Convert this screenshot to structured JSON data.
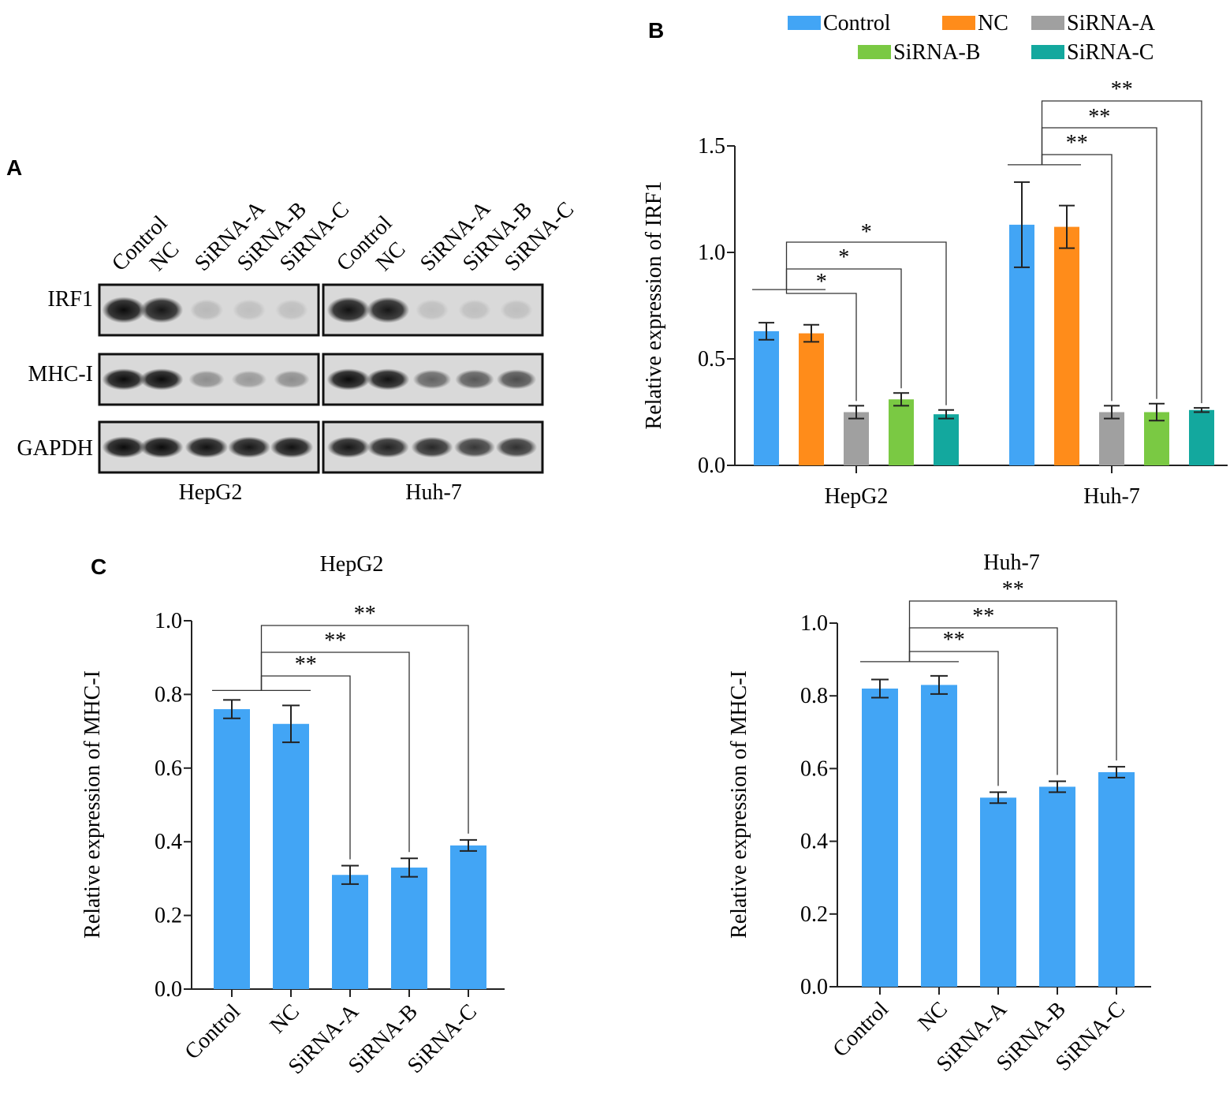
{
  "panel_labels": {
    "a": "A",
    "b": "B",
    "c": "C"
  },
  "western_blot": {
    "lanes": [
      "Control",
      "NC",
      "SiRNA-A",
      "SiRNA-B",
      "SiRNA-C",
      "Control",
      "NC",
      "SiRNA-A",
      "SiRNA-B",
      "SiRNA-C"
    ],
    "proteins": [
      "IRF1",
      "MHC-I",
      "GAPDH"
    ],
    "cell_lines": [
      "HepG2",
      "Huh-7"
    ],
    "band_intensity": {
      "IRF1": [
        0.95,
        0.9,
        0.15,
        0.12,
        0.1,
        0.92,
        0.9,
        0.12,
        0.08,
        0.08
      ],
      "MHC-I": [
        0.95,
        0.95,
        0.35,
        0.3,
        0.35,
        0.95,
        0.92,
        0.55,
        0.6,
        0.65
      ],
      "GAPDH": [
        0.95,
        0.95,
        0.92,
        0.9,
        0.92,
        0.9,
        0.85,
        0.82,
        0.75,
        0.78
      ]
    }
  },
  "chart_data": [
    {
      "type": "bar",
      "panel": "B",
      "categories": [
        "HepG2",
        "Huh-7"
      ],
      "ylabel": "Relative expression of IRF1",
      "ylim": [
        0,
        1.5
      ],
      "yticks": [
        "0.0",
        "0.5",
        "1.0",
        "1.5"
      ],
      "legend": {
        "position": "top",
        "entries": [
          "Control",
          "NC",
          "SiRNA-A",
          "SiRNA-B",
          "SiRNA-C"
        ]
      },
      "series": [
        {
          "name": "Control",
          "color": "#42a5f5",
          "values": [
            0.63,
            1.13
          ],
          "errors": [
            0.04,
            0.2
          ]
        },
        {
          "name": "NC",
          "color": "#ff8c1a",
          "values": [
            0.62,
            1.12
          ],
          "errors": [
            0.04,
            0.1
          ]
        },
        {
          "name": "SiRNA-A",
          "color": "#a0a0a0",
          "values": [
            0.25,
            0.25
          ],
          "errors": [
            0.03,
            0.03
          ]
        },
        {
          "name": "SiRNA-B",
          "color": "#7ac943",
          "values": [
            0.31,
            0.25
          ],
          "errors": [
            0.03,
            0.04
          ]
        },
        {
          "name": "SiRNA-C",
          "color": "#13a89e",
          "values": [
            0.24,
            0.26
          ],
          "errors": [
            0.02,
            0.01
          ]
        }
      ],
      "significance": [
        {
          "group": "HepG2",
          "marks": [
            "*",
            "*",
            "*"
          ]
        },
        {
          "group": "Huh-7",
          "marks": [
            "**",
            "**",
            "**"
          ]
        }
      ]
    },
    {
      "type": "bar",
      "panel": "C",
      "title": "HepG2",
      "categories": [
        "Control",
        "NC",
        "SiRNA-A",
        "SiRNA-B",
        "SiRNA-C"
      ],
      "ylabel": "Relative expression of MHC-I",
      "ylim": [
        0,
        1.0
      ],
      "yticks": [
        "0.0",
        "0.2",
        "0.4",
        "0.6",
        "0.8",
        "1.0"
      ],
      "color": "#42a5f5",
      "values": [
        0.76,
        0.72,
        0.31,
        0.33,
        0.39
      ],
      "errors": [
        0.025,
        0.05,
        0.025,
        0.025,
        0.015
      ],
      "significance": [
        "**",
        "**",
        "**"
      ]
    },
    {
      "type": "bar",
      "panel": "C",
      "title": "Huh-7",
      "categories": [
        "Control",
        "NC",
        "SiRNA-A",
        "SiRNA-B",
        "SiRNA-C"
      ],
      "ylabel": "Relative expression of MHC-I",
      "ylim": [
        0,
        1.0
      ],
      "yticks": [
        "0.0",
        "0.2",
        "0.4",
        "0.6",
        "0.8",
        "1.0"
      ],
      "color": "#42a5f5",
      "values": [
        0.82,
        0.83,
        0.52,
        0.55,
        0.59
      ],
      "errors": [
        0.025,
        0.025,
        0.015,
        0.015,
        0.015
      ],
      "significance": [
        "**",
        "**",
        "**"
      ]
    }
  ]
}
